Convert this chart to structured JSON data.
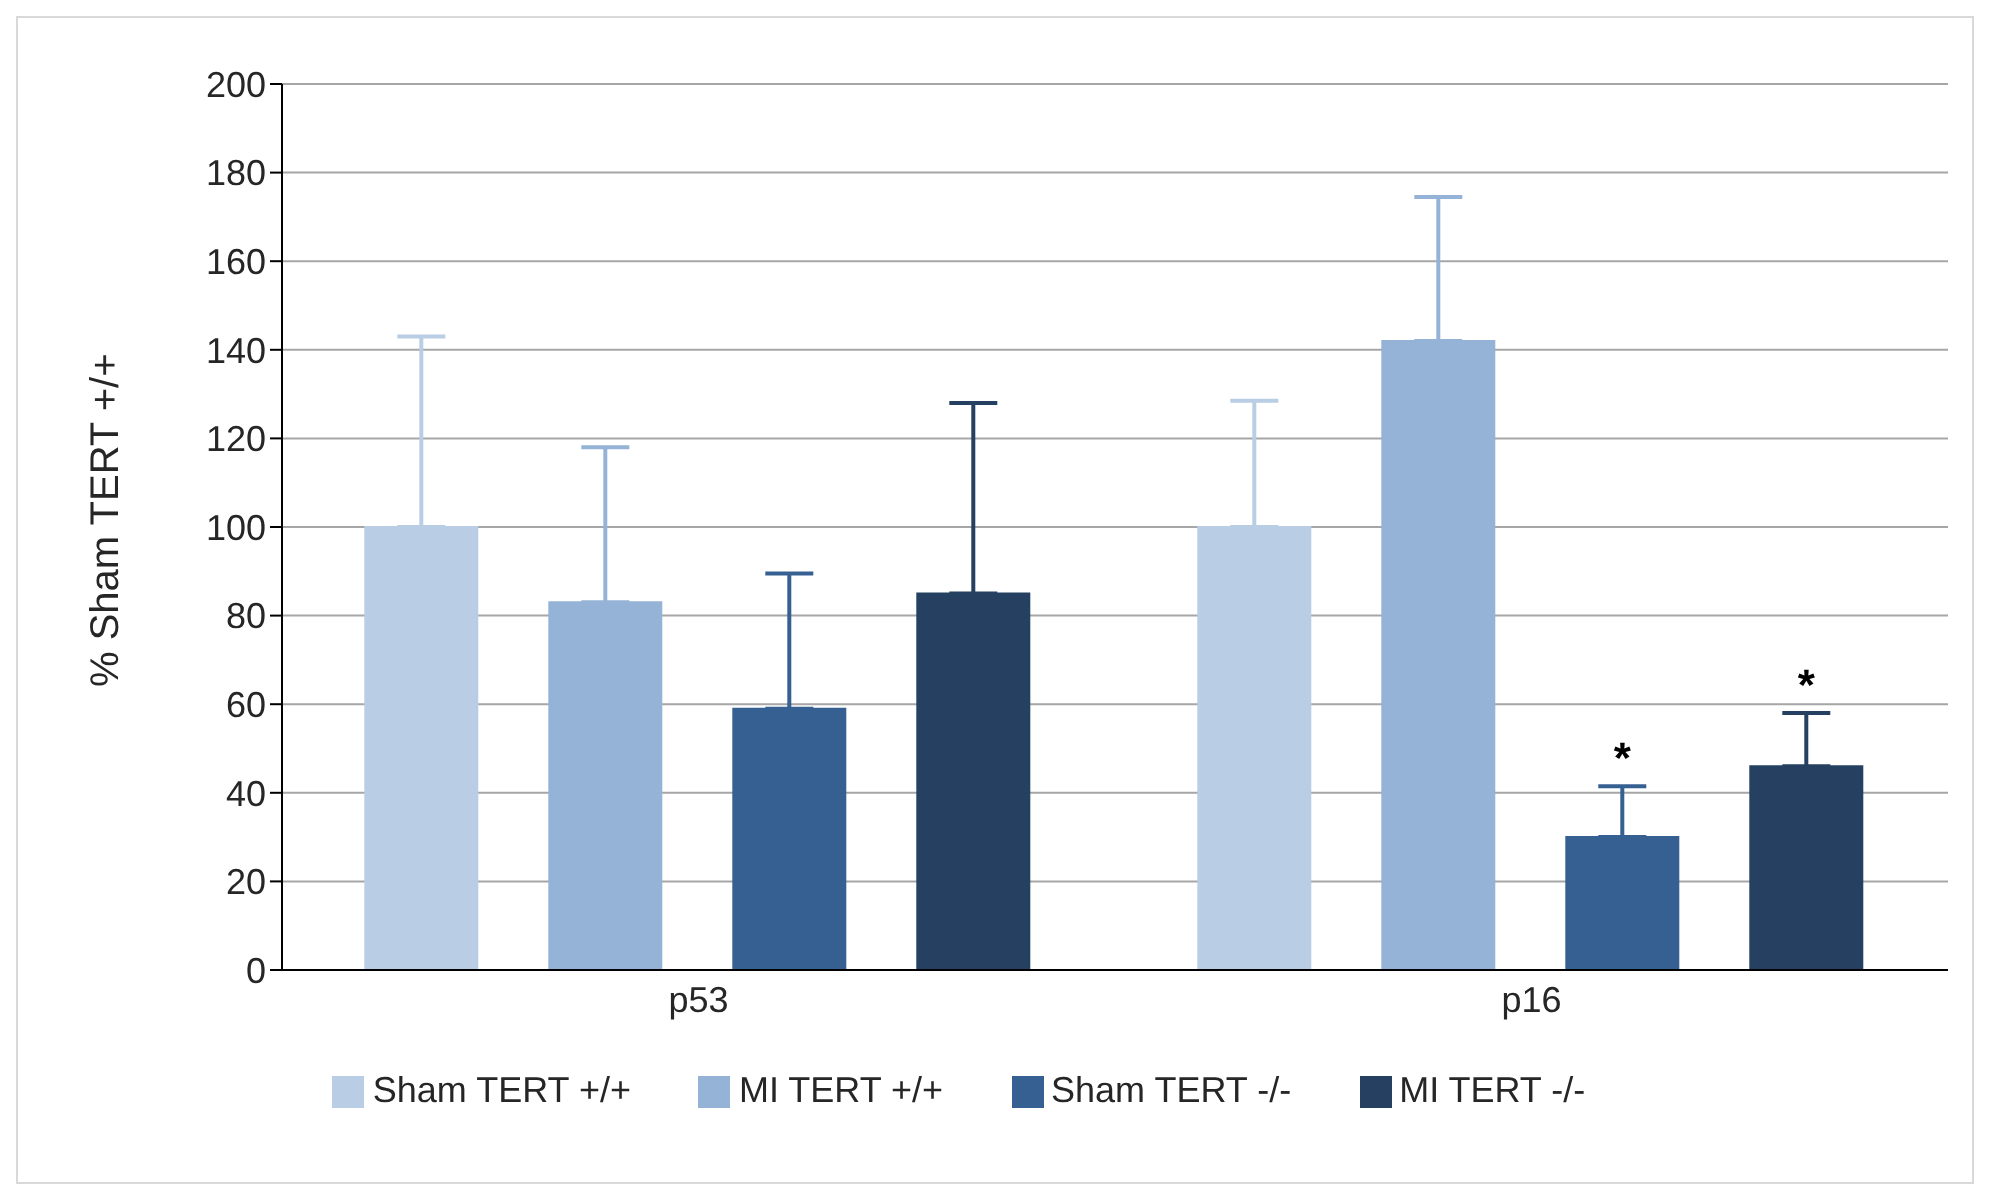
{
  "chart_data": {
    "type": "bar",
    "ylabel": "% Sham TERT +/+",
    "categories": [
      "p53",
      "p16"
    ],
    "series": [
      {
        "name": "Sham TERT +/+",
        "color": "#b9cde5",
        "values": [
          100,
          100
        ],
        "errors": [
          [
            100,
            143
          ],
          [
            100,
            128.5
          ]
        ]
      },
      {
        "name": "MI TERT +/+",
        "color": "#95b3d7",
        "values": [
          83,
          142
        ],
        "errors": [
          [
            83,
            118
          ],
          [
            142,
            174.5
          ]
        ]
      },
      {
        "name": "Sham TERT -/-",
        "color": "#366092",
        "values": [
          59,
          30
        ],
        "errors": [
          [
            59,
            89.5
          ],
          [
            30,
            41.5
          ]
        ]
      },
      {
        "name": "MI TERT -/-",
        "color": "#254061",
        "values": [
          85,
          46
        ],
        "errors": [
          [
            85,
            128
          ],
          [
            46,
            58
          ]
        ]
      }
    ],
    "ylim": [
      0,
      200
    ],
    "yticks": [
      0,
      20,
      40,
      60,
      80,
      100,
      120,
      140,
      160,
      180,
      200
    ],
    "grid": "y",
    "legend": "bottom",
    "annotations": [
      "*",
      "*"
    ]
  }
}
